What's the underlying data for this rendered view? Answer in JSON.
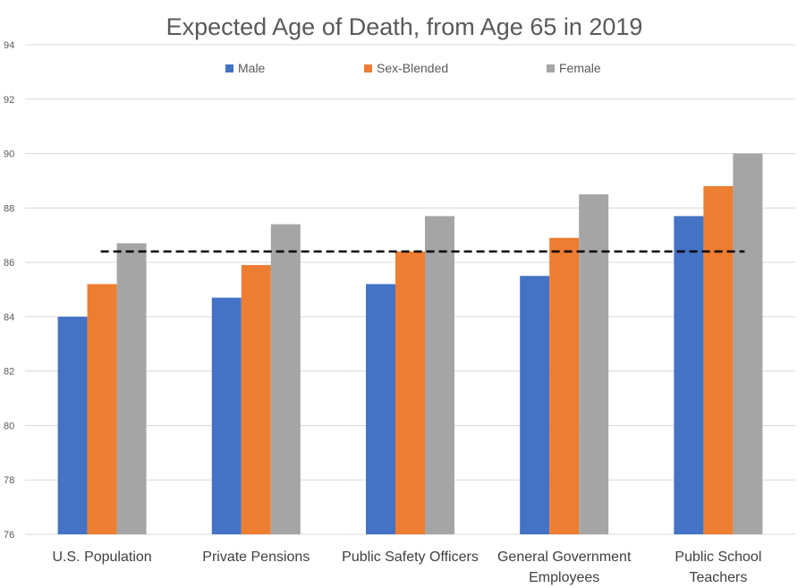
{
  "chart_data": {
    "type": "bar",
    "title": "Expected Age of Death, from Age 65 in 2019",
    "categories": [
      [
        "U.S. Population"
      ],
      [
        "Private Pensions"
      ],
      [
        "Public Safety Officers"
      ],
      [
        "General Government",
        "Employees"
      ],
      [
        "Public School",
        "Teachers"
      ]
    ],
    "series": [
      {
        "name": "Male",
        "color": "#4472c4",
        "values": [
          84.0,
          84.7,
          85.2,
          85.5,
          87.7
        ]
      },
      {
        "name": "Sex-Blended",
        "color": "#ed7d31",
        "values": [
          85.2,
          85.9,
          86.4,
          86.9,
          88.8
        ]
      },
      {
        "name": "Female",
        "color": "#a5a5a5",
        "values": [
          86.7,
          87.4,
          87.7,
          88.5,
          90.0
        ]
      }
    ],
    "reference_line": {
      "value": 86.4,
      "style": "dashed",
      "color": "#000000"
    },
    "ylim": [
      76,
      94
    ],
    "yticks": [
      76,
      78,
      80,
      82,
      84,
      86,
      88,
      90,
      92,
      94
    ],
    "grid": true,
    "legend_position": "top"
  }
}
